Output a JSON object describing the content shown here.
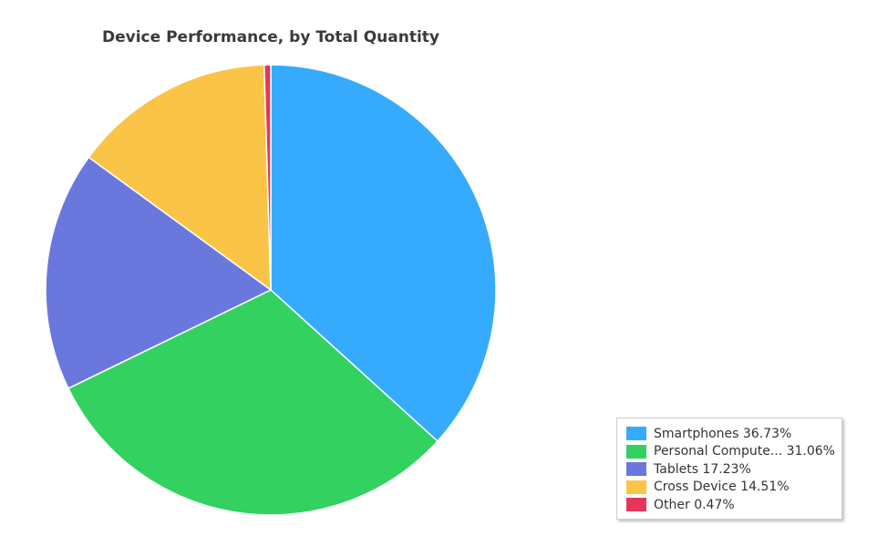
{
  "chart_data": {
    "type": "pie",
    "title": "Device Performance, by Total Quantity",
    "legend_position": "bottom-right",
    "slices": [
      {
        "name": "Smartphones",
        "legend_label": "Smartphones 36.73%",
        "value": 36.73,
        "color": "#36abfd"
      },
      {
        "name": "Personal Compute...",
        "legend_label": "Personal Compute... 31.06%",
        "value": 31.06,
        "color": "#33d15f"
      },
      {
        "name": "Tablets",
        "legend_label": "Tablets 17.23%",
        "value": 17.23,
        "color": "#6a78de"
      },
      {
        "name": "Cross Device",
        "legend_label": "Cross Device 14.51%",
        "value": 14.51,
        "color": "#fac446"
      },
      {
        "name": "Other",
        "legend_label": "Other 0.47%",
        "value": 0.47,
        "color": "#e3375a"
      }
    ]
  }
}
